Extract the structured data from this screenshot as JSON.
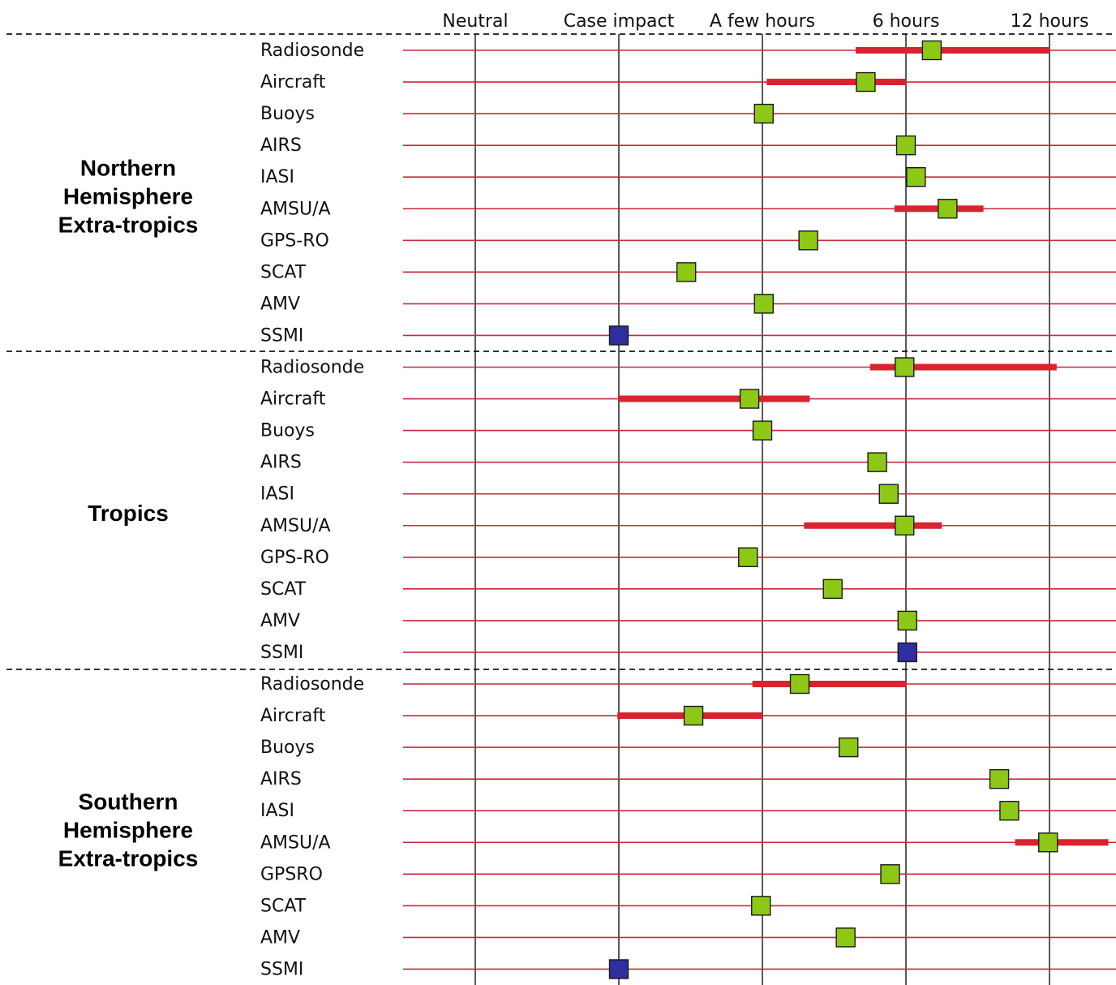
{
  "chart_data": {
    "type": "scatter",
    "columns": [
      "Neutral",
      "Case impact",
      "A few hours",
      "6 hours",
      "12 hours"
    ],
    "legend": "none",
    "grid": true,
    "groups": [
      {
        "name": "Northern\nHemisphere\nExtra-tropics",
        "rows": [
          {
            "label": "Radiosonde",
            "value": 3.18,
            "range": [
              2.65,
              4.0
            ],
            "marker": "green"
          },
          {
            "label": "Aircraft",
            "value": 2.72,
            "range": [
              2.03,
              3.0
            ],
            "marker": "green"
          },
          {
            "label": "Buoys",
            "value": 2.01,
            "marker": "green"
          },
          {
            "label": "AIRS",
            "value": 3.0,
            "marker": "green"
          },
          {
            "label": "IASI",
            "value": 3.07,
            "marker": "green"
          },
          {
            "label": "AMSU/A",
            "value": 3.29,
            "range": [
              2.92,
              3.54
            ],
            "marker": "green"
          },
          {
            "label": "GPS-RO",
            "value": 2.32,
            "marker": "green"
          },
          {
            "label": "SCAT",
            "value": 1.47,
            "marker": "green"
          },
          {
            "label": "AMV",
            "value": 2.01,
            "marker": "green"
          },
          {
            "label": "SSMI",
            "value": 1.0,
            "marker": "blue"
          }
        ]
      },
      {
        "name": "Tropics",
        "rows": [
          {
            "label": "Radiosonde",
            "value": 2.99,
            "range": [
              2.75,
              4.05
            ],
            "marker": "green"
          },
          {
            "label": "Aircraft",
            "value": 1.91,
            "range": [
              1.0,
              2.33
            ],
            "marker": "green"
          },
          {
            "label": "Buoys",
            "value": 2.0,
            "marker": "green"
          },
          {
            "label": "AIRS",
            "value": 2.8,
            "marker": "green"
          },
          {
            "label": "IASI",
            "value": 2.88,
            "marker": "green"
          },
          {
            "label": "AMSU/A",
            "value": 2.99,
            "range": [
              2.29,
              3.25
            ],
            "marker": "green"
          },
          {
            "label": "GPS-RO",
            "value": 1.9,
            "marker": "green"
          },
          {
            "label": "SCAT",
            "value": 2.49,
            "marker": "green"
          },
          {
            "label": "AMV",
            "value": 3.01,
            "marker": "green"
          },
          {
            "label": "SSMI",
            "value": 3.01,
            "marker": "blue"
          }
        ]
      },
      {
        "name": "Southern\nHemisphere\nExtra-tropics",
        "rows": [
          {
            "label": "Radiosonde",
            "value": 2.26,
            "range": [
              1.93,
              3.0
            ],
            "marker": "green"
          },
          {
            "label": "Aircraft",
            "value": 1.52,
            "range": [
              0.99,
              2.0
            ],
            "marker": "green"
          },
          {
            "label": "Buoys",
            "value": 2.6,
            "marker": "green"
          },
          {
            "label": "AIRS",
            "value": 3.65,
            "marker": "green"
          },
          {
            "label": "IASI",
            "value": 3.72,
            "marker": "green"
          },
          {
            "label": "AMSU/A",
            "value": 3.99,
            "range": [
              3.76,
              4.41
            ],
            "marker": "green"
          },
          {
            "label": "GPSRO",
            "value": 2.89,
            "marker": "green"
          },
          {
            "label": "SCAT",
            "value": 1.99,
            "marker": "green"
          },
          {
            "label": "AMV",
            "value": 2.58,
            "marker": "green"
          },
          {
            "label": "SSMI",
            "value": 1.0,
            "marker": "blue"
          }
        ]
      }
    ]
  },
  "colors": {
    "grid_vertical": "#000000",
    "row_line": "#c8283a",
    "range_bar": "#d9232e",
    "marker_green": "#8dc816",
    "marker_blue": "#2e2e9e",
    "separator": "#333333"
  }
}
